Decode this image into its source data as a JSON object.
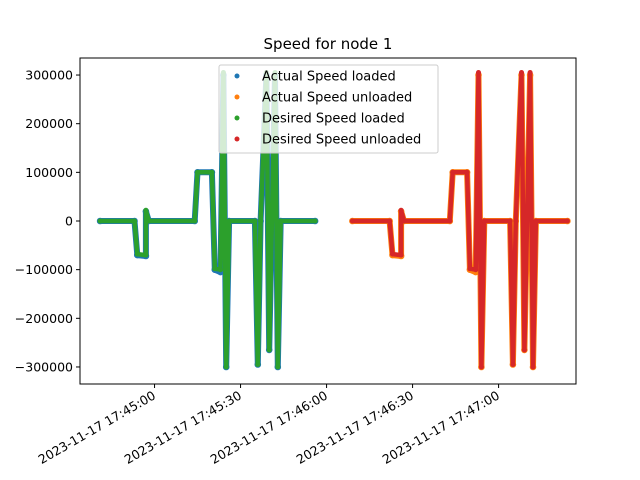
{
  "chart_data": {
    "type": "scatter",
    "title": "Speed for node 1",
    "xlabel": "",
    "ylabel": "",
    "xlim": [
      "2023-11-17 17:44:34",
      "2023-11-17 17:47:27"
    ],
    "ylim": [
      -335000,
      335000
    ],
    "x_ticks": [
      "2023-11-17 17:45:00",
      "2023-11-17 17:45:30",
      "2023-11-17 17:46:00",
      "2023-11-17 17:46:30",
      "2023-11-17 17:47:00"
    ],
    "y_ticks": [
      300000,
      200000,
      100000,
      0,
      -100000,
      -200000,
      -300000
    ],
    "y_tick_labels": [
      "300000",
      "200000",
      "100000",
      "0",
      "−100000",
      "−200000",
      "−300000"
    ],
    "grid": false,
    "legend_position": "top-center",
    "series": [
      {
        "name": "Actual Speed loaded",
        "color": "#1f77b4",
        "points": [
          [
            "2023-11-17 17:44:41",
            0
          ],
          [
            "2023-11-17 17:44:53",
            0
          ],
          [
            "2023-11-17 17:44:54",
            -70000
          ],
          [
            "2023-11-17 17:44:57",
            -72000
          ],
          [
            "2023-11-17 17:44:57",
            20000
          ],
          [
            "2023-11-17 17:44:58",
            0
          ],
          [
            "2023-11-17 17:45:14",
            0
          ],
          [
            "2023-11-17 17:45:15",
            100000
          ],
          [
            "2023-11-17 17:45:20",
            100000
          ],
          [
            "2023-11-17 17:45:21",
            -100000
          ],
          [
            "2023-11-17 17:45:23",
            -105000
          ],
          [
            "2023-11-17 17:45:24",
            300000
          ],
          [
            "2023-11-17 17:45:25",
            -300000
          ],
          [
            "2023-11-17 17:45:26",
            0
          ],
          [
            "2023-11-17 17:45:35",
            0
          ],
          [
            "2023-11-17 17:45:36",
            -295000
          ],
          [
            "2023-11-17 17:45:37",
            0
          ],
          [
            "2023-11-17 17:45:39",
            300000
          ],
          [
            "2023-11-17 17:45:40",
            -265000
          ],
          [
            "2023-11-17 17:45:42",
            300000
          ],
          [
            "2023-11-17 17:45:43",
            -300000
          ],
          [
            "2023-11-17 17:45:44",
            0
          ],
          [
            "2023-11-17 17:45:56",
            0
          ]
        ]
      },
      {
        "name": "Actual Speed unloaded",
        "color": "#ff7f0e",
        "points": [
          [
            "2023-11-17 17:46:09",
            0
          ],
          [
            "2023-11-17 17:46:22",
            0
          ],
          [
            "2023-11-17 17:46:23",
            -70000
          ],
          [
            "2023-11-17 17:46:26",
            -72000
          ],
          [
            "2023-11-17 17:46:26",
            20000
          ],
          [
            "2023-11-17 17:46:27",
            0
          ],
          [
            "2023-11-17 17:46:43",
            0
          ],
          [
            "2023-11-17 17:46:44",
            100000
          ],
          [
            "2023-11-17 17:46:49",
            100000
          ],
          [
            "2023-11-17 17:46:50",
            -100000
          ],
          [
            "2023-11-17 17:46:52",
            -105000
          ],
          [
            "2023-11-17 17:46:53",
            300000
          ],
          [
            "2023-11-17 17:46:54",
            -300000
          ],
          [
            "2023-11-17 17:46:55",
            0
          ],
          [
            "2023-11-17 17:47:04",
            0
          ],
          [
            "2023-11-17 17:47:05",
            -295000
          ],
          [
            "2023-11-17 17:47:06",
            0
          ],
          [
            "2023-11-17 17:47:08",
            300000
          ],
          [
            "2023-11-17 17:47:09",
            -265000
          ],
          [
            "2023-11-17 17:47:11",
            300000
          ],
          [
            "2023-11-17 17:47:12",
            -300000
          ],
          [
            "2023-11-17 17:47:13",
            0
          ],
          [
            "2023-11-17 17:47:24",
            0
          ]
        ]
      },
      {
        "name": "Desired Speed loaded",
        "color": "#2ca02c",
        "points": [
          [
            "2023-11-17 17:44:41",
            0
          ],
          [
            "2023-11-17 17:44:53",
            0
          ],
          [
            "2023-11-17 17:44:54",
            -68000
          ],
          [
            "2023-11-17 17:44:57",
            -70000
          ],
          [
            "2023-11-17 17:44:57",
            22000
          ],
          [
            "2023-11-17 17:44:58",
            0
          ],
          [
            "2023-11-17 17:45:14",
            0
          ],
          [
            "2023-11-17 17:45:15",
            100000
          ],
          [
            "2023-11-17 17:45:20",
            100000
          ],
          [
            "2023-11-17 17:45:21",
            -98000
          ],
          [
            "2023-11-17 17:45:23",
            -100000
          ],
          [
            "2023-11-17 17:45:24",
            305000
          ],
          [
            "2023-11-17 17:45:25",
            -300000
          ],
          [
            "2023-11-17 17:45:26",
            0
          ],
          [
            "2023-11-17 17:45:35",
            0
          ],
          [
            "2023-11-17 17:45:36",
            -295000
          ],
          [
            "2023-11-17 17:45:37",
            0
          ],
          [
            "2023-11-17 17:45:39",
            305000
          ],
          [
            "2023-11-17 17:45:40",
            -265000
          ],
          [
            "2023-11-17 17:45:42",
            305000
          ],
          [
            "2023-11-17 17:45:43",
            -300000
          ],
          [
            "2023-11-17 17:45:44",
            0
          ],
          [
            "2023-11-17 17:45:56",
            0
          ]
        ]
      },
      {
        "name": "Desired Speed unloaded",
        "color": "#d62728",
        "points": [
          [
            "2023-11-17 17:46:09",
            0
          ],
          [
            "2023-11-17 17:46:22",
            0
          ],
          [
            "2023-11-17 17:46:23",
            -68000
          ],
          [
            "2023-11-17 17:46:26",
            -70000
          ],
          [
            "2023-11-17 17:46:26",
            22000
          ],
          [
            "2023-11-17 17:46:27",
            0
          ],
          [
            "2023-11-17 17:46:43",
            0
          ],
          [
            "2023-11-17 17:46:44",
            100000
          ],
          [
            "2023-11-17 17:46:49",
            100000
          ],
          [
            "2023-11-17 17:46:50",
            -98000
          ],
          [
            "2023-11-17 17:46:52",
            -100000
          ],
          [
            "2023-11-17 17:46:53",
            305000
          ],
          [
            "2023-11-17 17:46:54",
            -300000
          ],
          [
            "2023-11-17 17:46:55",
            0
          ],
          [
            "2023-11-17 17:47:04",
            0
          ],
          [
            "2023-11-17 17:47:05",
            -295000
          ],
          [
            "2023-11-17 17:47:06",
            0
          ],
          [
            "2023-11-17 17:47:08",
            305000
          ],
          [
            "2023-11-17 17:47:09",
            -265000
          ],
          [
            "2023-11-17 17:47:11",
            305000
          ],
          [
            "2023-11-17 17:47:12",
            -300000
          ],
          [
            "2023-11-17 17:47:13",
            0
          ],
          [
            "2023-11-17 17:47:24",
            0
          ]
        ]
      }
    ]
  }
}
